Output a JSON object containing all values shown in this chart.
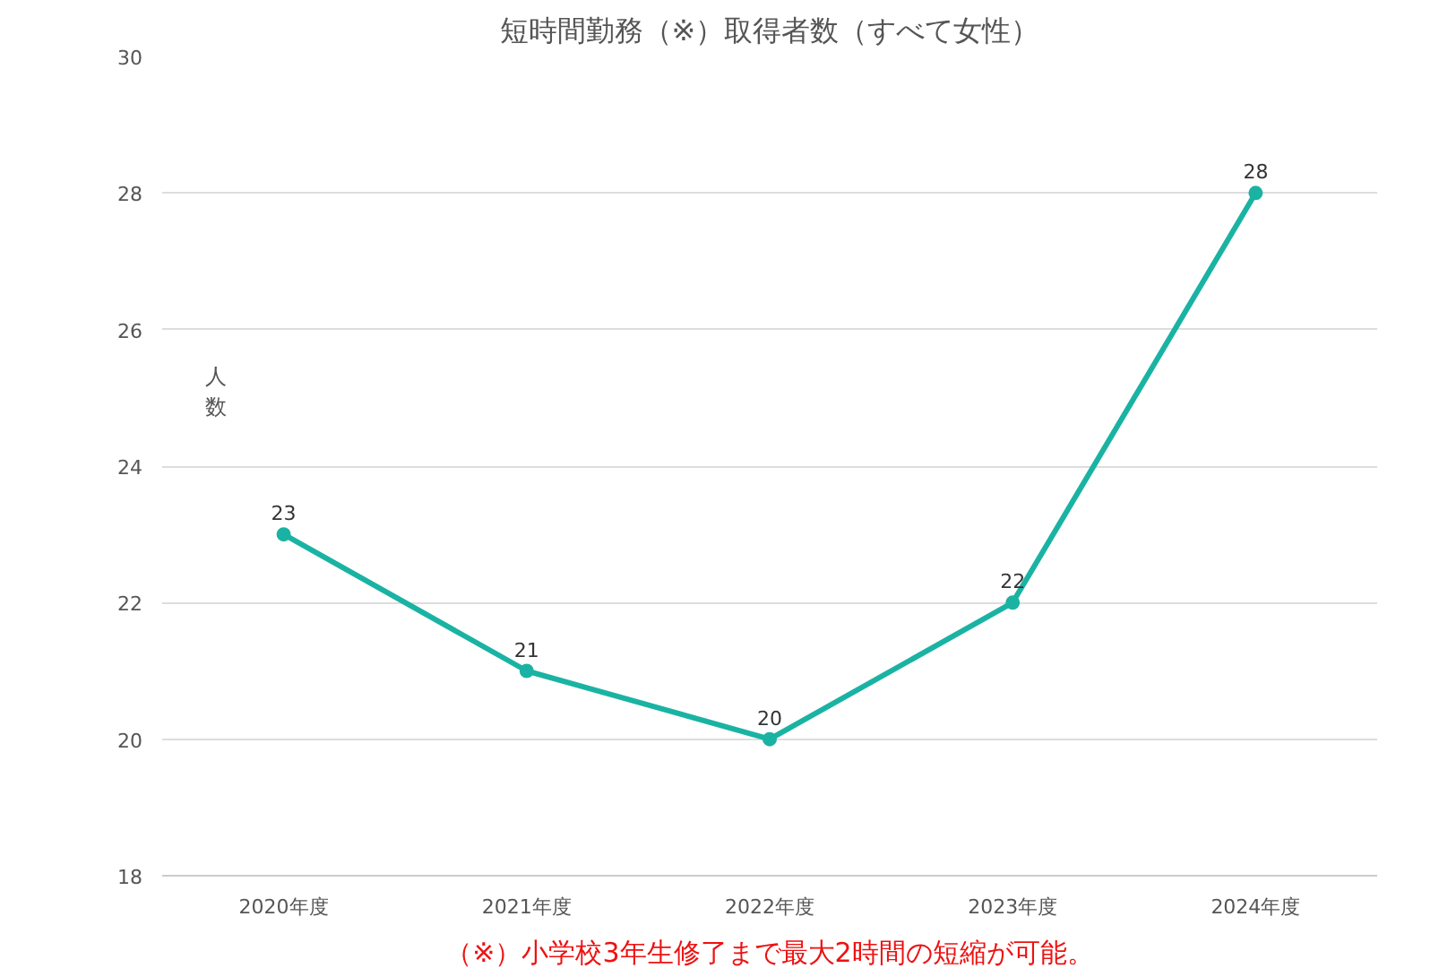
{
  "chart_data": {
    "type": "line",
    "title": "短時間勤務（※）取得者数（すべて女性）",
    "ylabel": "人数",
    "categories": [
      "2020年度",
      "2021年度",
      "2022年度",
      "2023年度",
      "2024年度"
    ],
    "series": [
      {
        "color": "#1ab3a3",
        "values": [
          23,
          21,
          20,
          22,
          28
        ]
      }
    ],
    "ylim": [
      18,
      30
    ],
    "yticks": [
      18,
      20,
      22,
      24,
      26,
      28,
      30
    ],
    "grid": "y",
    "marker": "circle",
    "line_style": "solid",
    "data_labels": true,
    "annotations": [
      "（※）小学校3年生修了まで最大2時間の短縮が可能。"
    ]
  }
}
